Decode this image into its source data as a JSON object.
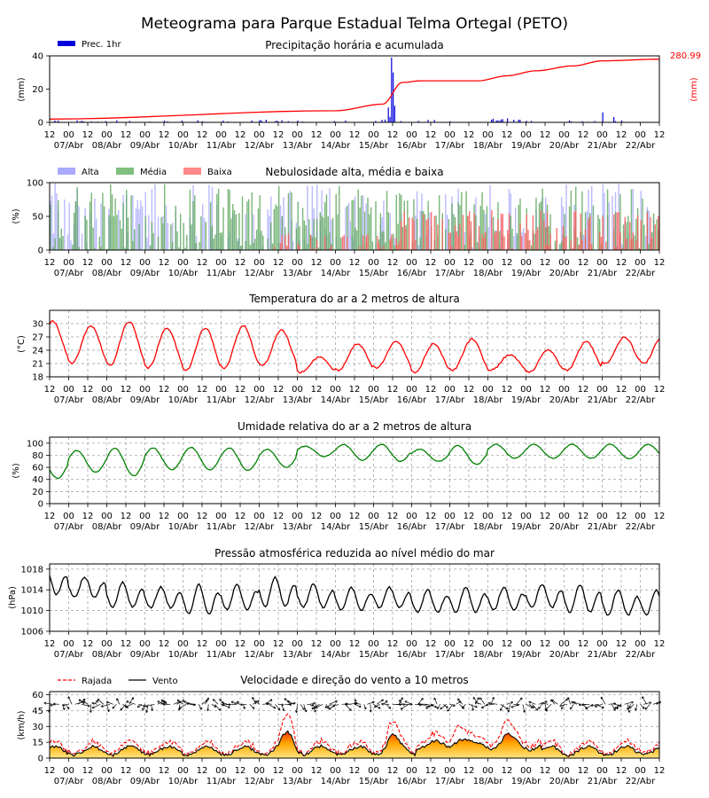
{
  "title": "Meteograma para Parque Estadual Telma Ortegal (PETO)",
  "time_axis": {
    "hour_labels": [
      "12",
      "00"
    ],
    "date_labels": [
      "07/Abr",
      "08/Abr",
      "09/Abr",
      "10/Abr",
      "11/Abr",
      "12/Abr",
      "13/Abr",
      "14/Abr",
      "15/Abr",
      "16/Abr",
      "17/Abr",
      "18/Abr",
      "19/Abr",
      "20/Abr",
      "21/Abr",
      "22/Abr"
    ],
    "start": "06/Abr 12h",
    "days": 16
  },
  "colors": {
    "precip_bar": "#0000dd",
    "precip_acc": "#ff0000",
    "cloud_high": "#aaaaff",
    "cloud_mid": "#4f9f4f",
    "cloud_low": "#ff5555",
    "temperature": "#ff0000",
    "humidity": "#008000",
    "pressure": "#000000",
    "gust": "#ff0000",
    "wind": "#000000"
  },
  "chart_data": [
    {
      "type": "bar",
      "title": "Precipitação horária e acumulada",
      "ylabel": "(mm)",
      "ylabel_right": "(mm)",
      "ylim": [
        0,
        40
      ],
      "yticks": [
        0,
        20,
        40
      ],
      "legend": [
        "Prec. 1hr"
      ],
      "total_label": "280.99",
      "hourly_peaks": [
        {
          "x": "15/Abr 09h",
          "value": 9
        },
        {
          "x": "15/Abr 11h",
          "value": 39
        },
        {
          "x": "15/Abr 12h",
          "value": 30
        },
        {
          "x": "15/Abr 13h",
          "value": 10
        },
        {
          "x": "21/Abr 00h",
          "value": 6
        }
      ],
      "accumulated_points": [
        {
          "x": "06/Abr 12h",
          "value": 2
        },
        {
          "x": "14/Abr 00h",
          "value": 7
        },
        {
          "x": "15/Abr 06h",
          "value": 11
        },
        {
          "x": "15/Abr 18h",
          "value": 24
        },
        {
          "x": "16/Abr 06h",
          "value": 25
        },
        {
          "x": "17/Abr 18h",
          "value": 25
        },
        {
          "x": "18/Abr 12h",
          "value": 28
        },
        {
          "x": "19/Abr 06h",
          "value": 31
        },
        {
          "x": "20/Abr 06h",
          "value": 34
        },
        {
          "x": "21/Abr 00h",
          "value": 37
        },
        {
          "x": "22/Abr 12h",
          "value": 38
        }
      ]
    },
    {
      "type": "bar",
      "title": "Nebulosidade alta, média e baixa",
      "ylabel": "(%)",
      "ylim": [
        0,
        100
      ],
      "yticks": [
        0,
        50,
        100
      ],
      "legend": [
        "Alta",
        "Média",
        "Baixa"
      ]
    },
    {
      "type": "line",
      "title": "Temperatura do ar a 2 metros de altura",
      "ylabel": "(°C)",
      "ylim": [
        18,
        33
      ],
      "yticks": [
        18,
        21,
        24,
        27,
        30
      ],
      "daily_max": [
        30.5,
        29.5,
        30.5,
        29,
        29,
        29.5,
        28.5,
        22.5,
        25.5,
        26,
        25.5,
        26.5,
        23,
        24,
        26,
        27
      ],
      "daily_min": [
        21.5,
        21,
        20.5,
        20,
        19.5,
        20,
        20.5,
        19,
        19.5,
        20,
        19,
        19.5,
        19.5,
        19,
        19.5,
        21
      ]
    },
    {
      "type": "line",
      "title": "Umidade relativa do ar a 2 metros de altura",
      "ylabel": "(%)",
      "ylim": [
        0,
        110
      ],
      "yticks": [
        0,
        20,
        40,
        60,
        80,
        100
      ],
      "daily_min": [
        42,
        52,
        46,
        56,
        56,
        55,
        60,
        78,
        72,
        70,
        70,
        65,
        75,
        75,
        75,
        74
      ],
      "daily_max": [
        82,
        88,
        92,
        92,
        93,
        92,
        90,
        95,
        98,
        98,
        90,
        96,
        98,
        98,
        98,
        98
      ]
    },
    {
      "type": "line",
      "title": "Pressão atmosférica reduzida ao nível médio do mar",
      "ylabel": "(hPa)",
      "ylim": [
        1006,
        1019
      ],
      "yticks": [
        1006,
        1010,
        1014,
        1018
      ],
      "daily_min": [
        1012.5,
        1012,
        1010,
        1010,
        1008.5,
        1009.5,
        1010,
        1010,
        1009.5,
        1010,
        1009,
        1009,
        1009.5,
        1010,
        1009,
        1008.5
      ],
      "daily_max": [
        1018,
        1016.5,
        1015.5,
        1014.5,
        1015,
        1015,
        1016.5,
        1015,
        1014.5,
        1014.5,
        1014,
        1014.5,
        1014.5,
        1015,
        1015,
        1014
      ]
    },
    {
      "type": "area",
      "title": "Velocidade e direção do vento a 10 metros",
      "ylabel": "(km/h)",
      "ylim": [
        0,
        63
      ],
      "yticks": [
        0,
        15,
        30,
        45,
        60
      ],
      "legend": [
        "Rajada",
        "Vento"
      ],
      "wind_peaks": [
        {
          "x": "12/Abr 18h",
          "value": 25
        },
        {
          "x": "15/Abr 12h",
          "value": 22
        },
        {
          "x": "17/Abr 06h",
          "value": 18
        },
        {
          "x": "18/Abr 12h",
          "value": 17
        }
      ],
      "gust_peaks": [
        {
          "x": "12/Abr 18h",
          "value": 41
        },
        {
          "x": "15/Abr 12h",
          "value": 34
        },
        {
          "x": "17/Abr 06h",
          "value": 31
        },
        {
          "x": "18/Abr 12h",
          "value": 35
        }
      ]
    }
  ]
}
